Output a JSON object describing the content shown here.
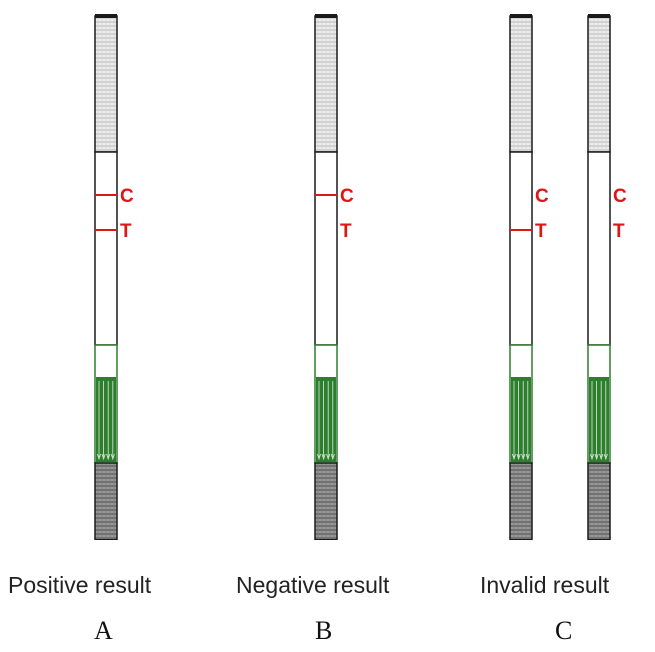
{
  "strips": [
    {
      "id": "A1",
      "control_line": true,
      "test_line": true,
      "marks": {
        "c": "C",
        "t": "T"
      }
    },
    {
      "id": "B1",
      "control_line": true,
      "test_line": false,
      "marks": {
        "c": "C",
        "t": "T"
      }
    },
    {
      "id": "C1",
      "control_line": false,
      "test_line": true,
      "marks": {
        "c": "C",
        "t": "T"
      }
    },
    {
      "id": "C2",
      "control_line": false,
      "test_line": false,
      "marks": {
        "c": "C",
        "t": "T"
      }
    }
  ],
  "groups": [
    {
      "caption": "Positive result",
      "letter": "A"
    },
    {
      "caption": "Negative result",
      "letter": "B"
    },
    {
      "caption": "Invalid result",
      "letter": "C"
    }
  ],
  "colors": {
    "line": "#e01515",
    "sample_pad": "#2f7d2f",
    "frame": "#1a1a1a",
    "hatch_light": "#b5b5b5",
    "hatch_dark": "#555555"
  }
}
